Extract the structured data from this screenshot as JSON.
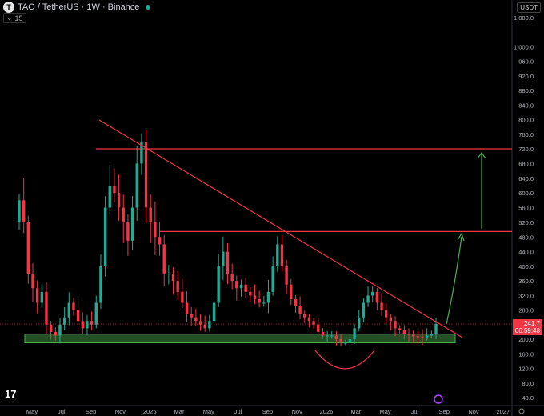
{
  "header": {
    "symbol_icon": "T",
    "title": "TAO / TetherUS · 1W · Binance",
    "indicator_label": "15",
    "currency": "USDT"
  },
  "price_tag": {
    "price": "241.7",
    "countdown": "06:59:48"
  },
  "colors": {
    "bull": "#22ab94",
    "bear": "#f23645",
    "resistance": "#f23645",
    "trendline": "#f23645",
    "support_zone": "#4caf50",
    "arrow": "#4caf50"
  },
  "icons": {
    "tv_logo": "tradingview-logo-icon",
    "bottom_icon": "purple-star-icon",
    "settings": "gear-icon"
  },
  "chart_data": {
    "type": "candlestick",
    "title": "TAO / TetherUS · 1W · Binance",
    "y_scale": "log",
    "ylim": [
      40,
      1200
    ],
    "y_ticks": [
      "1,080.0",
      "1,000.0",
      "960.0",
      "920.0",
      "880.0",
      "840.0",
      "800.0",
      "760.0",
      "720.0",
      "680.0",
      "640.0",
      "600.0",
      "560.0",
      "520.0",
      "480.0",
      "440.0",
      "400.0",
      "360.0",
      "320.0",
      "280.0",
      "240.0",
      "200.0",
      "160.0",
      "120.0",
      "80.0",
      "40.0"
    ],
    "x_ticks": [
      "May",
      "Jul",
      "Sep",
      "Nov",
      "2025",
      "Mar",
      "May",
      "Jul",
      "Sep",
      "Nov",
      "2026",
      "Mar",
      "May",
      "Jul",
      "Sep",
      "Nov",
      "2027"
    ],
    "close_path": [
      580,
      520,
      380,
      340,
      300,
      330,
      240,
      220,
      210,
      240,
      260,
      300,
      280,
      250,
      230,
      250,
      240,
      300,
      400,
      560,
      620,
      600,
      560,
      520,
      470,
      560,
      680,
      740,
      560,
      520,
      480,
      460,
      380,
      380,
      360,
      330,
      300,
      270,
      260,
      250,
      240,
      230,
      250,
      300,
      400,
      440,
      380,
      360,
      340,
      350,
      330,
      320,
      310,
      300,
      300,
      330,
      400,
      460,
      400,
      350,
      310,
      290,
      270,
      260,
      250,
      240,
      220,
      210,
      210,
      210,
      200,
      190,
      190,
      200,
      230,
      260,
      300,
      320,
      330,
      300,
      280,
      260,
      250,
      230,
      225,
      215,
      212,
      208,
      206,
      205,
      210,
      215,
      241.7
    ],
    "annotations": {
      "resistance_levels": [
        720,
        495
      ],
      "support_zone": [
        190,
        214
      ],
      "descending_trendline": {
        "from": "Oct 2024",
        "to": "Aug 2026"
      },
      "current_price": 241.7,
      "countdown": "06:59:48"
    }
  }
}
